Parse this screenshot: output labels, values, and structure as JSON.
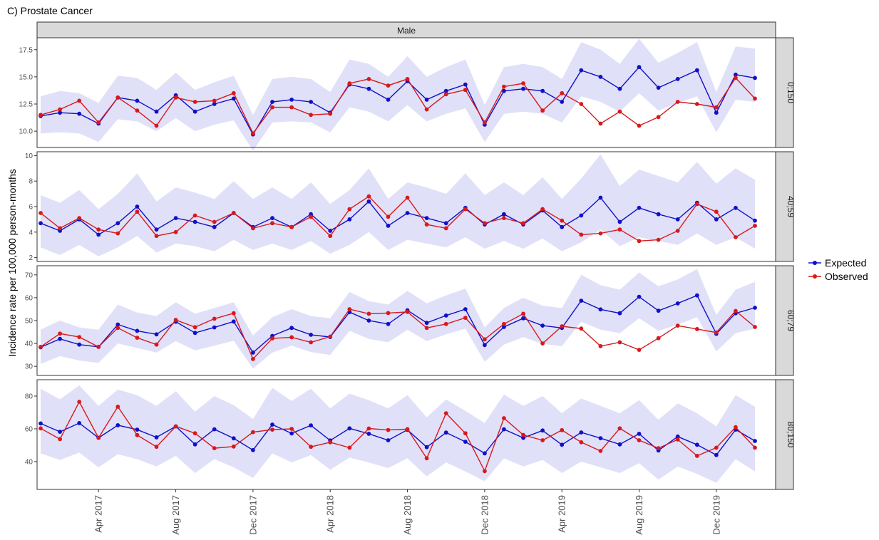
{
  "chart_data": {
    "type": "line",
    "title": "C) Prostate Cancer",
    "facet_column": "Male",
    "ylabel": "Incidence rate per 100,000 person-months",
    "x": [
      "2017-01",
      "2017-02",
      "2017-03",
      "2017-04",
      "2017-05",
      "2017-06",
      "2017-07",
      "2017-08",
      "2017-09",
      "2017-10",
      "2017-11",
      "2017-12",
      "2018-01",
      "2018-02",
      "2018-03",
      "2018-04",
      "2018-05",
      "2018-06",
      "2018-07",
      "2018-08",
      "2018-09",
      "2018-10",
      "2018-11",
      "2018-12",
      "2019-01",
      "2019-02",
      "2019-03",
      "2019-04",
      "2019-05",
      "2019-06",
      "2019-07",
      "2019-08",
      "2019-09",
      "2019-10",
      "2019-11",
      "2019-12",
      "2020-01",
      "2020-02"
    ],
    "x_ticks": [
      {
        "x": "2017-04",
        "label": "Apr 2017"
      },
      {
        "x": "2017-08",
        "label": "Aug 2017"
      },
      {
        "x": "2017-12",
        "label": "Dec 2017"
      },
      {
        "x": "2018-04",
        "label": "Apr 2018"
      },
      {
        "x": "2018-08",
        "label": "Aug 2018"
      },
      {
        "x": "2018-12",
        "label": "Dec 2018"
      },
      {
        "x": "2019-04",
        "label": "Apr 2019"
      },
      {
        "x": "2019-08",
        "label": "Aug 2019"
      },
      {
        "x": "2019-12",
        "label": "Dec 2019"
      }
    ],
    "legend": {
      "position": "right",
      "entries": [
        {
          "name": "Expected",
          "color": "#1010c8"
        },
        {
          "name": "Observed",
          "color": "#d7191c"
        }
      ]
    },
    "band_color": "#e0e0f8",
    "grid": false,
    "panels": [
      {
        "label": "0;150",
        "ylim": [
          8.5,
          18.6
        ],
        "yticks": [
          10.0,
          12.5,
          15.0,
          17.5
        ],
        "yticklabels": [
          "10.0",
          "12.5",
          "15.0",
          "17.5"
        ],
        "series": [
          {
            "name": "Expected",
            "values": [
              11.4,
              11.7,
              11.6,
              10.7,
              13.1,
              12.8,
              11.8,
              13.3,
              11.8,
              12.5,
              13.0,
              9.7,
              12.7,
              12.9,
              12.7,
              11.7,
              14.3,
              13.9,
              12.9,
              14.6,
              12.9,
              13.7,
              14.3,
              10.6,
              13.7,
              13.9,
              13.7,
              12.7,
              15.6,
              15.0,
              13.9,
              15.9,
              14.0,
              14.8,
              15.6,
              11.7,
              15.2,
              14.9
            ]
          },
          {
            "name": "Observed",
            "values": [
              11.5,
              12.0,
              12.8,
              10.8,
              13.1,
              11.9,
              10.5,
              13.1,
              12.7,
              12.8,
              13.5,
              9.8,
              12.2,
              12.2,
              11.5,
              11.6,
              14.4,
              14.8,
              14.2,
              14.8,
              12.0,
              13.4,
              13.8,
              10.8,
              14.1,
              14.4,
              11.9,
              13.5,
              12.5,
              10.7,
              11.8,
              10.5,
              11.3,
              12.7,
              12.5,
              12.2,
              14.9,
              13.0
            ]
          }
        ],
        "band_lower": [
          9.8,
          9.9,
          9.8,
          9.0,
          11.1,
          10.9,
          10.0,
          11.2,
          10.0,
          10.6,
          11.0,
          8.2,
          10.8,
          10.9,
          10.8,
          9.9,
          12.2,
          11.8,
          10.9,
          12.4,
          10.9,
          11.6,
          12.1,
          9.0,
          11.6,
          11.8,
          11.6,
          10.8,
          13.2,
          12.7,
          11.8,
          13.5,
          11.9,
          12.6,
          13.2,
          9.9,
          12.9,
          12.7
        ],
        "band_upper": [
          13.2,
          13.7,
          13.5,
          12.6,
          15.1,
          14.9,
          13.8,
          15.4,
          13.8,
          14.5,
          15.1,
          11.5,
          14.8,
          15.0,
          14.8,
          13.6,
          16.6,
          16.2,
          15.0,
          16.9,
          15.0,
          15.9,
          16.6,
          12.4,
          15.9,
          16.2,
          15.9,
          14.8,
          18.2,
          17.5,
          16.2,
          18.5,
          16.3,
          17.2,
          18.2,
          13.6,
          17.8,
          17.6
        ]
      },
      {
        "label": "40;59",
        "ylim": [
          1.7,
          10.3
        ],
        "yticks": [
          2,
          4,
          6,
          8,
          10
        ],
        "yticklabels": [
          "2",
          "4",
          "6",
          "8",
          "10"
        ],
        "series": [
          {
            "name": "Expected",
            "values": [
              4.7,
              4.1,
              5.0,
              3.8,
              4.7,
              6.0,
              4.2,
              5.1,
              4.8,
              4.4,
              5.5,
              4.4,
              5.1,
              4.4,
              5.4,
              4.1,
              5.0,
              6.4,
              4.5,
              5.5,
              5.1,
              4.7,
              5.9,
              4.6,
              5.4,
              4.6,
              5.7,
              4.4,
              5.3,
              6.7,
              4.8,
              5.9,
              5.4,
              5.0,
              6.3,
              5.0,
              5.9,
              4.9
            ]
          },
          {
            "name": "Observed",
            "values": [
              5.5,
              4.3,
              5.1,
              4.2,
              3.9,
              5.6,
              3.7,
              4.0,
              5.3,
              4.8,
              5.5,
              4.3,
              4.7,
              4.4,
              5.2,
              3.7,
              5.8,
              6.8,
              5.2,
              6.7,
              4.6,
              4.3,
              5.8,
              4.7,
              5.1,
              4.7,
              5.8,
              4.9,
              3.8,
              3.9,
              4.2,
              3.3,
              3.4,
              4.1,
              6.2,
              5.6,
              3.6,
              4.5
            ]
          }
        ],
        "band_lower": [
          2.8,
          2.2,
          3.0,
          2.1,
          2.8,
          3.7,
          2.4,
          3.1,
          2.9,
          2.5,
          3.4,
          2.6,
          3.1,
          2.6,
          3.3,
          2.3,
          3.0,
          4.0,
          2.6,
          3.4,
          3.1,
          2.8,
          3.6,
          2.7,
          3.3,
          2.7,
          3.5,
          2.5,
          3.2,
          4.2,
          2.9,
          3.6,
          3.3,
          3.0,
          3.9,
          3.0,
          3.6,
          2.7
        ],
        "band_upper": [
          6.9,
          6.3,
          7.3,
          5.8,
          7.0,
          8.6,
          6.4,
          7.5,
          7.1,
          6.6,
          8.0,
          6.6,
          7.5,
          6.6,
          7.9,
          6.2,
          7.3,
          9.0,
          6.6,
          7.9,
          7.5,
          7.0,
          8.6,
          6.9,
          7.9,
          6.9,
          8.3,
          6.6,
          8.2,
          10.1,
          7.6,
          8.9,
          8.4,
          7.9,
          9.5,
          7.8,
          9.0,
          8.1
        ]
      },
      {
        "label": "60;79",
        "ylim": [
          26,
          74
        ],
        "yticks": [
          30,
          40,
          50,
          60,
          70
        ],
        "yticklabels": [
          "30",
          "40",
          "50",
          "60",
          "70"
        ],
        "series": [
          {
            "name": "Expected",
            "values": [
              38.3,
              42.0,
              39.5,
              38.5,
              48.3,
              45.5,
              44.0,
              49.5,
              44.6,
              47.0,
              49.6,
              36.0,
              43.3,
              46.8,
              43.8,
              42.8,
              53.7,
              50.0,
              48.5,
              54.5,
              49.0,
              52.2,
              55.0,
              39.3,
              47.2,
              51.0,
              47.8,
              46.8,
              58.7,
              54.9,
              53.2,
              60.4,
              54.3,
              57.5,
              61.0,
              44.2,
              53.2,
              55.6
            ]
          },
          {
            "name": "Observed",
            "values": [
              38.5,
              44.3,
              42.8,
              38.5,
              46.8,
              42.5,
              39.5,
              50.3,
              47.1,
              50.8,
              53.2,
              33.2,
              42.2,
              42.7,
              40.5,
              43.0,
              55.0,
              53.0,
              53.3,
              53.8,
              46.8,
              48.5,
              51.2,
              41.8,
              48.5,
              53.0,
              40.0,
              47.5,
              46.5,
              38.8,
              40.5,
              37.2,
              42.3,
              47.8,
              46.3,
              44.8,
              54.2,
              47.2
            ]
          }
        ],
        "band_lower": [
          31.0,
          34.5,
          32.5,
          31.5,
          40.0,
          38.0,
          36.0,
          41.0,
          37.0,
          39.0,
          41.2,
          29.0,
          36.0,
          39.0,
          36.2,
          35.0,
          45.5,
          42.0,
          40.5,
          46.0,
          41.0,
          44.0,
          46.5,
          32.0,
          39.5,
          42.8,
          39.8,
          38.8,
          49.5,
          46.0,
          44.5,
          51.0,
          45.5,
          48.2,
          51.5,
          36.5,
          44.5,
          46.5
        ],
        "band_upper": [
          46.0,
          50.0,
          47.0,
          46.0,
          57.0,
          53.5,
          52.0,
          58.0,
          53.0,
          55.5,
          58.0,
          43.5,
          51.5,
          55.0,
          52.0,
          51.0,
          62.5,
          58.5,
          57.0,
          63.0,
          57.5,
          61.0,
          64.0,
          47.0,
          55.5,
          60.0,
          56.5,
          55.5,
          70.0,
          65.5,
          63.5,
          71.0,
          65.0,
          68.0,
          72.5,
          52.5,
          63.5,
          67.0
        ]
      },
      {
        "label": "80;150",
        "ylim": [
          23,
          90
        ],
        "yticks": [
          40,
          60,
          80
        ],
        "yticklabels": [
          "40",
          "60",
          "80"
        ],
        "series": [
          {
            "name": "Expected",
            "values": [
              63.3,
              58.2,
              63.5,
              54.5,
              62.2,
              59.5,
              54.8,
              61.5,
              50.5,
              59.7,
              54.2,
              47.0,
              62.6,
              57.2,
              62.1,
              52.9,
              60.3,
              57.0,
              53.0,
              59.4,
              48.8,
              57.7,
              52.1,
              45.0,
              59.7,
              54.5,
              59.0,
              50.3,
              57.8,
              54.3,
              50.5,
              57.0,
              46.8,
              55.3,
              50.3,
              44.0,
              59.5,
              52.6
            ]
          },
          {
            "name": "Observed",
            "values": [
              60.3,
              53.7,
              76.5,
              54.5,
              73.5,
              56.2,
              49.0,
              61.5,
              57.3,
              48.2,
              49.2,
              58.0,
              59.5,
              60.0,
              49.0,
              51.8,
              48.5,
              60.2,
              59.3,
              59.8,
              42.0,
              69.5,
              57.3,
              34.2,
              66.5,
              56.3,
              53.0,
              59.2,
              51.8,
              46.5,
              60.3,
              53.0,
              48.2,
              53.5,
              43.5,
              48.5,
              61.0,
              48.5
            ]
          }
        ],
        "band_lower": [
          45.0,
          41.0,
          45.5,
          36.5,
          44.5,
          41.5,
          37.0,
          43.5,
          33.0,
          41.5,
          36.5,
          30.0,
          45.0,
          39.5,
          44.0,
          35.0,
          42.5,
          39.5,
          36.0,
          42.0,
          31.0,
          39.5,
          34.0,
          28.0,
          42.0,
          37.0,
          41.0,
          33.0,
          40.0,
          36.5,
          33.0,
          39.0,
          29.0,
          37.0,
          32.5,
          27.0,
          41.5,
          34.0
        ],
        "band_upper": [
          84.5,
          78.0,
          86.5,
          74.0,
          84.0,
          80.5,
          74.0,
          83.0,
          70.5,
          80.0,
          74.5,
          66.0,
          85.0,
          77.0,
          84.5,
          72.5,
          81.5,
          77.5,
          72.5,
          80.5,
          67.0,
          78.0,
          71.0,
          63.5,
          81.0,
          74.0,
          80.0,
          69.5,
          78.5,
          74.0,
          69.5,
          77.5,
          65.5,
          75.5,
          69.5,
          61.5,
          80.5,
          73.5
        ]
      }
    ]
  }
}
